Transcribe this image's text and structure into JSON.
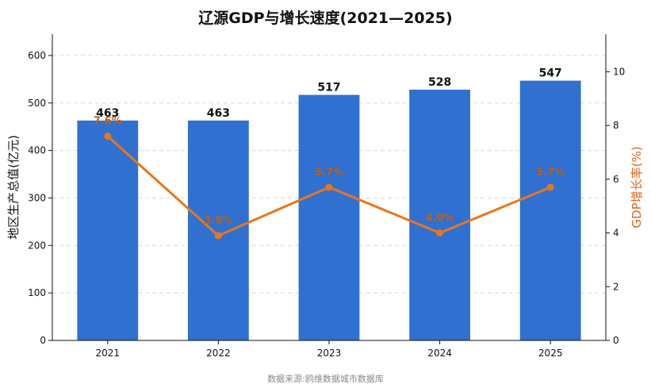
{
  "title": "辽源GDP与增长速度(2021—2025)",
  "source": "数据来源:鸥维数据城市数据库",
  "chart_data": {
    "type": "bar",
    "categories": [
      "2021",
      "2022",
      "2023",
      "2024",
      "2025"
    ],
    "series": [
      {
        "name": "地区生产总值",
        "type": "bar",
        "axis": "left",
        "values": [
          463,
          463,
          517,
          528,
          547
        ],
        "labels": [
          "463",
          "463",
          "517",
          "528",
          "547"
        ],
        "color": "#3070d0"
      },
      {
        "name": "GDP增长率",
        "type": "line",
        "axis": "right",
        "values": [
          7.6,
          3.9,
          5.7,
          4.0,
          5.7
        ],
        "labels": [
          "7.6%",
          "3.9%",
          "5.7%",
          "4.0%",
          "5.7%"
        ],
        "color": "#e8761a"
      }
    ],
    "ylabel": "地区生产总值(亿元)",
    "y2label": "GDP增长率(%)",
    "ylim": [
      0,
      645
    ],
    "y2lim": [
      0,
      11.4
    ],
    "yticks": [
      "0",
      "100",
      "200",
      "300",
      "400",
      "500",
      "600"
    ],
    "y2ticks": [
      "0",
      "2",
      "4",
      "6",
      "8",
      "10"
    ],
    "grid": "horizontal dashed",
    "legend": "none"
  }
}
